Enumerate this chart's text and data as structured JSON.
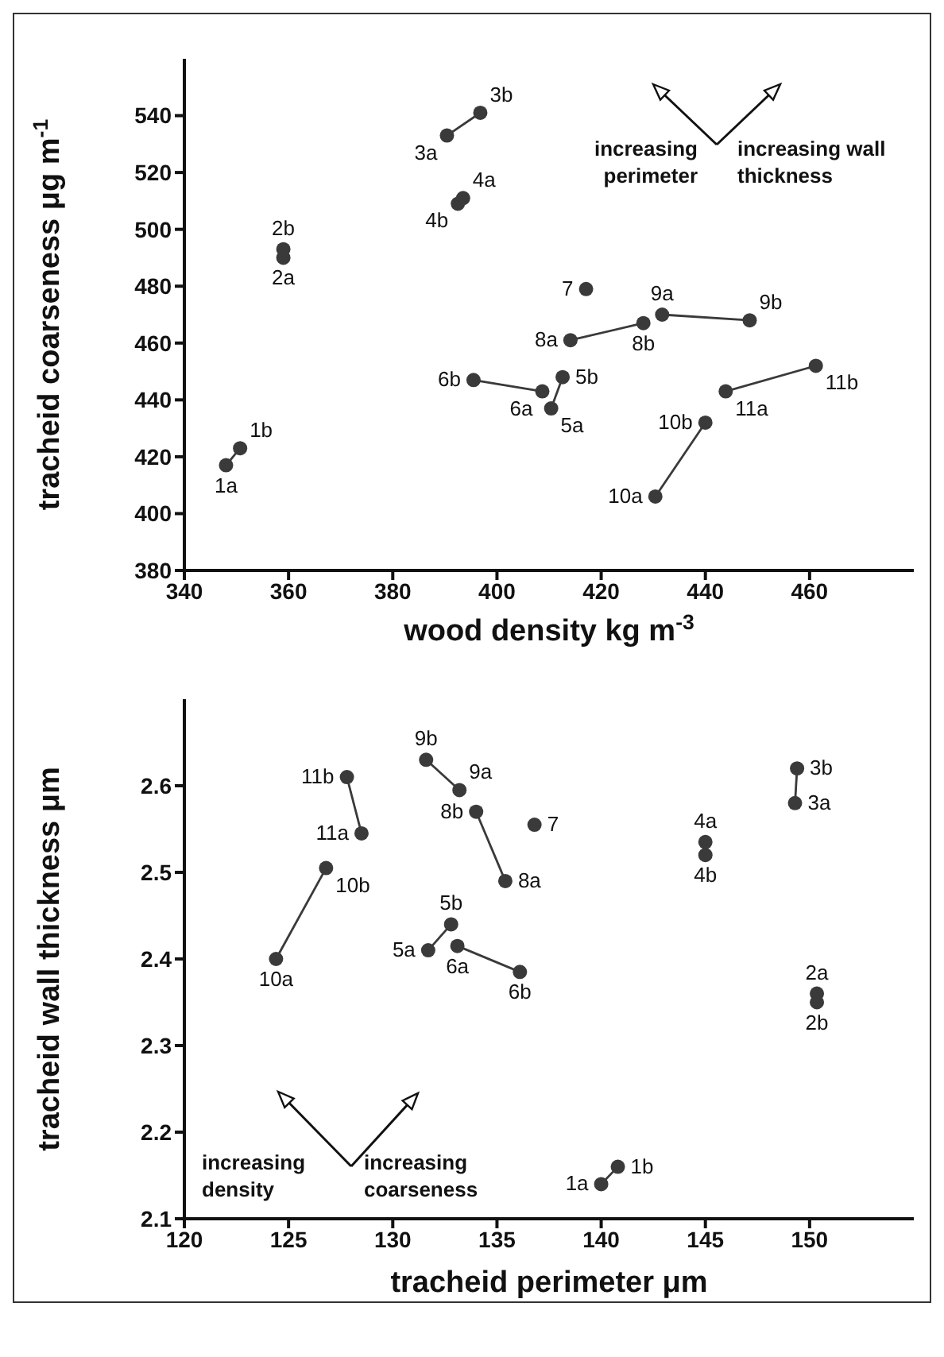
{
  "chart_data": [
    {
      "type": "scatter",
      "xlabel": "wood density  kg m$^{-3}$",
      "ylabel": "tracheid coarseness  μg m$^{-1}$",
      "xlim": [
        340,
        480
      ],
      "xticks": [
        340,
        360,
        380,
        400,
        420,
        440,
        460
      ],
      "ylim": [
        380,
        560
      ],
      "yticks": [
        380,
        400,
        420,
        440,
        460,
        480,
        500,
        520,
        540
      ],
      "marker": "circle",
      "annotations": [
        "increasing perimeter",
        "increasing wall thickness",
        {
          "text": "1a",
          "x": 348,
          "y": 417
        },
        {
          "text": "1b",
          "x": 350.7,
          "y": 423
        },
        {
          "text": "2a",
          "x": 359,
          "y": 490
        },
        {
          "text": "2b",
          "x": 359,
          "y": 493
        },
        {
          "text": "3a",
          "x": 390.4,
          "y": 533
        },
        {
          "text": "3b",
          "x": 396.8,
          "y": 541
        },
        {
          "text": "4a",
          "x": 393.5,
          "y": 511
        },
        {
          "text": "4b",
          "x": 392.5,
          "y": 509
        },
        {
          "text": "5a",
          "x": 410.4,
          "y": 437
        },
        {
          "text": "5b",
          "x": 412.6,
          "y": 448
        },
        {
          "text": "6a",
          "x": 408.7,
          "y": 443
        },
        {
          "text": "6b",
          "x": 395.5,
          "y": 447
        },
        {
          "text": "7",
          "x": 417.1,
          "y": 479
        },
        {
          "text": "8a",
          "x": 414.1,
          "y": 461
        },
        {
          "text": "8b",
          "x": 428.1,
          "y": 467
        },
        {
          "text": "9a",
          "x": 431.7,
          "y": 470
        },
        {
          "text": "9b",
          "x": 448.5,
          "y": 468
        },
        {
          "text": "10a",
          "x": 430.4,
          "y": 406
        },
        {
          "text": "10b",
          "x": 440,
          "y": 432
        },
        {
          "text": "11a",
          "x": 443.9,
          "y": 443
        },
        {
          "text": "11b",
          "x": 461.2,
          "y": 452
        }
      ],
      "series": [
        {
          "type": "line",
          "color": "#3a3a3a",
          "x": [
            348,
            350.7
          ],
          "values": [
            417,
            423
          ]
        },
        {
          "color": "#3a3a3a",
          "x": [
            359,
            359
          ],
          "values": [
            490,
            493
          ]
        },
        {
          "type": "line",
          "color": "#3a3a3a",
          "x": [
            390.4,
            396.8
          ],
          "values": [
            533,
            541
          ]
        },
        {
          "color": "#3a3a3a",
          "x": [
            393.5,
            392.5
          ],
          "values": [
            511,
            509
          ]
        },
        {
          "type": "line",
          "color": "#3a3a3a",
          "x": [
            410.4,
            412.6
          ],
          "values": [
            437,
            448
          ]
        },
        {
          "type": "line",
          "color": "#3a3a3a",
          "x": [
            408.7,
            395.5
          ],
          "values": [
            443,
            447
          ]
        },
        {
          "color": "#3a3a3a",
          "x": [
            417.1
          ],
          "values": [
            479
          ]
        },
        {
          "type": "line",
          "color": "#3a3a3a",
          "x": [
            414.1,
            428.1
          ],
          "values": [
            461,
            467
          ]
        },
        {
          "type": "line",
          "color": "#3a3a3a",
          "x": [
            431.7,
            448.5
          ],
          "values": [
            470,
            468
          ]
        },
        {
          "type": "line",
          "color": "#3a3a3a",
          "x": [
            430.4,
            440
          ],
          "values": [
            406,
            432
          ]
        },
        {
          "type": "line",
          "color": "#3a3a3a",
          "x": [
            443.9,
            461.2
          ],
          "values": [
            443,
            452
          ]
        }
      ]
    },
    {
      "type": "scatter",
      "xlabel": "tracheid perimeter  μm",
      "ylabel": "tracheid wall thickness  μm",
      "xlim": [
        120,
        155
      ],
      "xticks": [
        120,
        125,
        130,
        135,
        140,
        145,
        150
      ],
      "ylim": [
        2.1,
        2.7
      ],
      "yticks": [
        2.1,
        2.2,
        2.3,
        2.4,
        2.5,
        2.6
      ],
      "marker": "circle",
      "annotations": [
        "increasing density",
        "increasing coarseness",
        {
          "text": "1a",
          "x": 140,
          "y": 2.14
        },
        {
          "text": "1b",
          "x": 140.8,
          "y": 2.16
        },
        {
          "text": "2a",
          "x": 150.35,
          "y": 2.36
        },
        {
          "text": "2b",
          "x": 150.35,
          "y": 2.35
        },
        {
          "text": "3a",
          "x": 149.3,
          "y": 2.58
        },
        {
          "text": "3b",
          "x": 149.4,
          "y": 2.62
        },
        {
          "text": "4a",
          "x": 145,
          "y": 2.535
        },
        {
          "text": "4b",
          "x": 145,
          "y": 2.52
        },
        {
          "text": "5a",
          "x": 131.7,
          "y": 2.41
        },
        {
          "text": "5b",
          "x": 132.8,
          "y": 2.44
        },
        {
          "text": "6a",
          "x": 133.1,
          "y": 2.415
        },
        {
          "text": "6b",
          "x": 136.1,
          "y": 2.385
        },
        {
          "text": "7",
          "x": 136.8,
          "y": 2.555
        },
        {
          "text": "8a",
          "x": 135.4,
          "y": 2.49
        },
        {
          "text": "8b",
          "x": 134,
          "y": 2.57
        },
        {
          "text": "9a",
          "x": 133.2,
          "y": 2.595
        },
        {
          "text": "9b",
          "x": 131.6,
          "y": 2.63
        },
        {
          "text": "10a",
          "x": 124.4,
          "y": 2.4
        },
        {
          "text": "10b",
          "x": 126.8,
          "y": 2.505
        },
        {
          "text": "11a",
          "x": 128.5,
          "y": 2.545
        },
        {
          "text": "11b",
          "x": 127.8,
          "y": 2.61
        }
      ],
      "series": [
        {
          "type": "line",
          "color": "#3a3a3a",
          "x": [
            140,
            140.8
          ],
          "values": [
            2.14,
            2.16
          ]
        },
        {
          "color": "#3a3a3a",
          "x": [
            150.35,
            150.35
          ],
          "values": [
            2.36,
            2.35
          ]
        },
        {
          "type": "line",
          "color": "#3a3a3a",
          "x": [
            149.3,
            149.4
          ],
          "values": [
            2.58,
            2.62
          ]
        },
        {
          "color": "#3a3a3a",
          "x": [
            145,
            145
          ],
          "values": [
            2.535,
            2.52
          ]
        },
        {
          "type": "line",
          "color": "#3a3a3a",
          "x": [
            131.7,
            132.8
          ],
          "values": [
            2.41,
            2.44
          ]
        },
        {
          "type": "line",
          "color": "#3a3a3a",
          "x": [
            133.1,
            136.1
          ],
          "values": [
            2.415,
            2.385
          ]
        },
        {
          "color": "#3a3a3a",
          "x": [
            136.8
          ],
          "values": [
            2.555
          ]
        },
        {
          "type": "line",
          "color": "#3a3a3a",
          "x": [
            135.4,
            134
          ],
          "values": [
            2.49,
            2.57
          ]
        },
        {
          "type": "line",
          "color": "#3a3a3a",
          "x": [
            133.2,
            131.6
          ],
          "values": [
            2.595,
            2.63
          ]
        },
        {
          "type": "line",
          "color": "#3a3a3a",
          "x": [
            124.4,
            126.8
          ],
          "values": [
            2.4,
            2.505
          ]
        },
        {
          "type": "line",
          "color": "#3a3a3a",
          "x": [
            128.5,
            127.8
          ],
          "values": [
            2.545,
            2.61
          ]
        }
      ]
    }
  ]
}
